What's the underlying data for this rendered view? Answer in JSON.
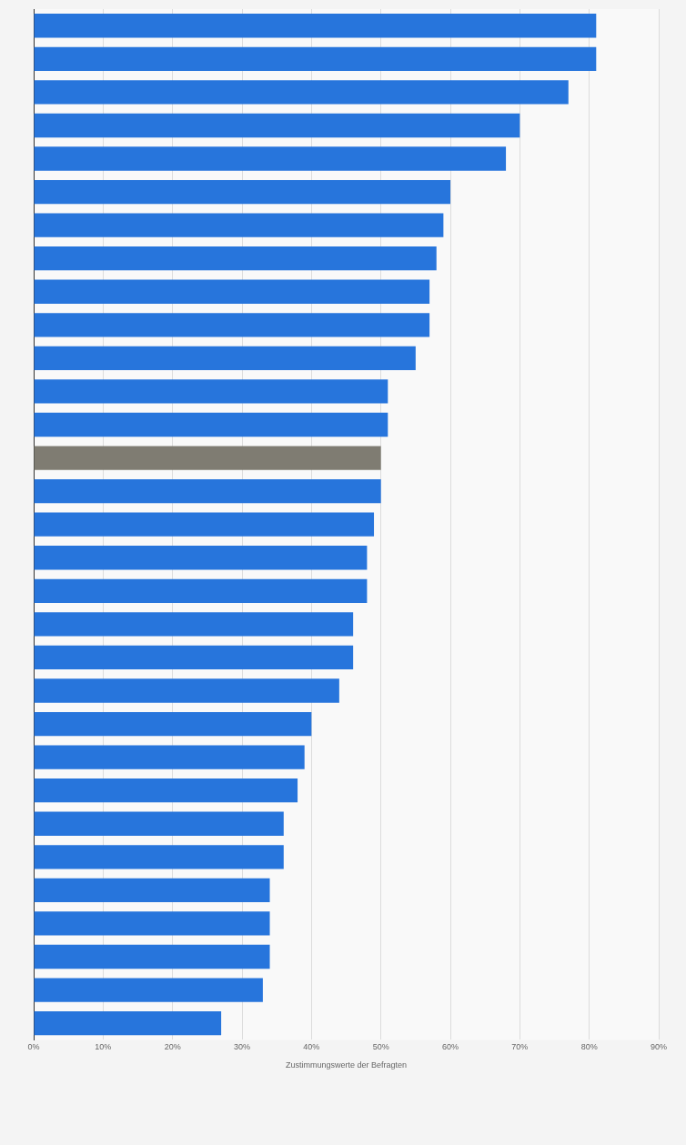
{
  "chart_data": {
    "type": "bar",
    "orientation": "horizontal",
    "xlabel": "Zustimmungswerte der Befragten",
    "categories": [
      null,
      null,
      null,
      null,
      null,
      null,
      null,
      null,
      null,
      null,
      null,
      null,
      null,
      null,
      null,
      null,
      null,
      null,
      null,
      null,
      null,
      null,
      null,
      null,
      null,
      null,
      null,
      null,
      null,
      null,
      null
    ],
    "values": [
      81,
      81,
      77,
      70,
      68,
      60,
      59,
      58,
      57,
      57,
      55,
      51,
      51,
      50,
      50,
      49,
      48,
      48,
      46,
      46,
      44,
      40,
      39,
      38,
      36,
      36,
      34,
      34,
      34,
      33,
      27
    ],
    "colors": [
      "#2775dc",
      "#2775dc",
      "#2775dc",
      "#2775dc",
      "#2775dc",
      "#2775dc",
      "#2775dc",
      "#2775dc",
      "#2775dc",
      "#2775dc",
      "#2775dc",
      "#2775dc",
      "#2775dc",
      "#7f7c72",
      "#2775dc",
      "#2775dc",
      "#2775dc",
      "#2775dc",
      "#2775dc",
      "#2775dc",
      "#2775dc",
      "#2775dc",
      "#2775dc",
      "#2775dc",
      "#2775dc",
      "#2775dc",
      "#2775dc",
      "#2775dc",
      "#2775dc",
      "#2775dc",
      "#2775dc"
    ],
    "xlim": [
      0,
      90
    ],
    "xticks": [
      {
        "value": 0,
        "label": "0%"
      },
      {
        "value": 10,
        "label": "10%"
      },
      {
        "value": 20,
        "label": "20%"
      },
      {
        "value": 30,
        "label": "30%"
      },
      {
        "value": 40,
        "label": "40%"
      },
      {
        "value": 50,
        "label": "50%"
      },
      {
        "value": 60,
        "label": "60%"
      },
      {
        "value": 70,
        "label": "70%"
      },
      {
        "value": 80,
        "label": "80%"
      },
      {
        "value": 90,
        "label": "90%"
      }
    ],
    "grid": "x",
    "tick_labels": "x"
  }
}
